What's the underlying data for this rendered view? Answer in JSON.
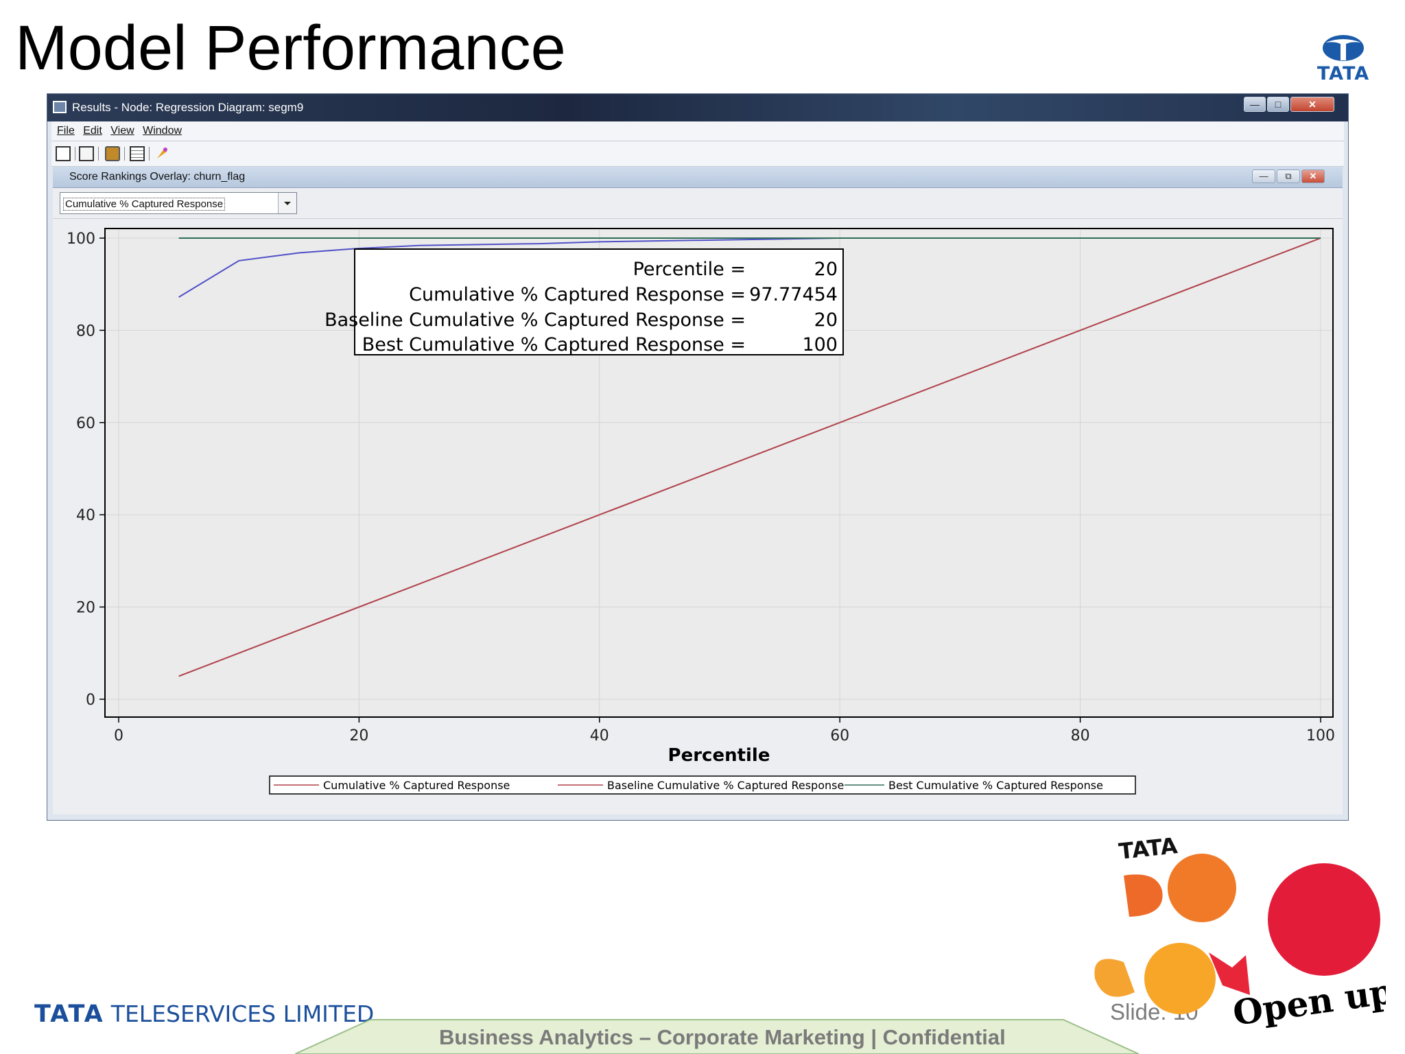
{
  "slide": {
    "title": "Model Performance",
    "slide_number": "Slide: 10",
    "footer": "Business Analytics – Corporate Marketing  | Confidential",
    "company": {
      "brand": "TATA",
      "name": "TELESERVICES LIMITED"
    },
    "tata_logo_text": "TATA",
    "docomo_logo": {
      "brand": "TATA",
      "tagline": "Open up"
    }
  },
  "window": {
    "title": "Results - Node: Regression  Diagram: segm9",
    "menu": [
      "File",
      "Edit",
      "View",
      "Window"
    ],
    "toolbar_icons": [
      "new-document-icon",
      "page-icon",
      "print-icon",
      "table-icon",
      "wizard-icon"
    ],
    "inner_title": "Score Rankings Overlay: churn_flag",
    "dropdown_value": "Cumulative % Captured Response"
  },
  "colors": {
    "cumulative": "#5050c8",
    "baseline": "#b0404a",
    "best": "#2e6e55"
  },
  "chart_data": {
    "type": "line",
    "xlabel": "Percentile",
    "ylabel": "",
    "xlim": [
      0,
      100
    ],
    "ylim": [
      0,
      100
    ],
    "x_ticks": [
      0,
      20,
      40,
      60,
      80,
      100
    ],
    "y_ticks": [
      0,
      20,
      40,
      60,
      80,
      100
    ],
    "grid": true,
    "legend_position": "bottom",
    "series": [
      {
        "name": "Cumulative % Captured Response",
        "x": [
          5,
          10,
          15,
          20,
          25,
          30,
          35,
          40,
          45,
          50,
          55,
          60,
          65,
          70,
          75,
          80,
          85,
          90,
          95,
          100
        ],
        "y": [
          87.2,
          95.1,
          96.8,
          97.77454,
          98.4,
          98.6,
          98.8,
          99.2,
          99.4,
          99.6,
          99.8,
          100,
          100,
          100,
          100,
          100,
          100,
          100,
          100,
          100
        ]
      },
      {
        "name": "Baseline Cumulative % Captured Response",
        "x": [
          5,
          100
        ],
        "y": [
          5,
          100
        ]
      },
      {
        "name": "Best Cumulative % Captured Response",
        "x": [
          5,
          100
        ],
        "y": [
          100,
          100
        ]
      }
    ],
    "tooltip": [
      {
        "label": "Percentile =",
        "value": "20"
      },
      {
        "label": "Cumulative % Captured Response =",
        "value": "97.77454"
      },
      {
        "label": "Baseline Cumulative % Captured Response =",
        "value": "20"
      },
      {
        "label": "Best Cumulative % Captured Response =",
        "value": "100"
      }
    ]
  }
}
